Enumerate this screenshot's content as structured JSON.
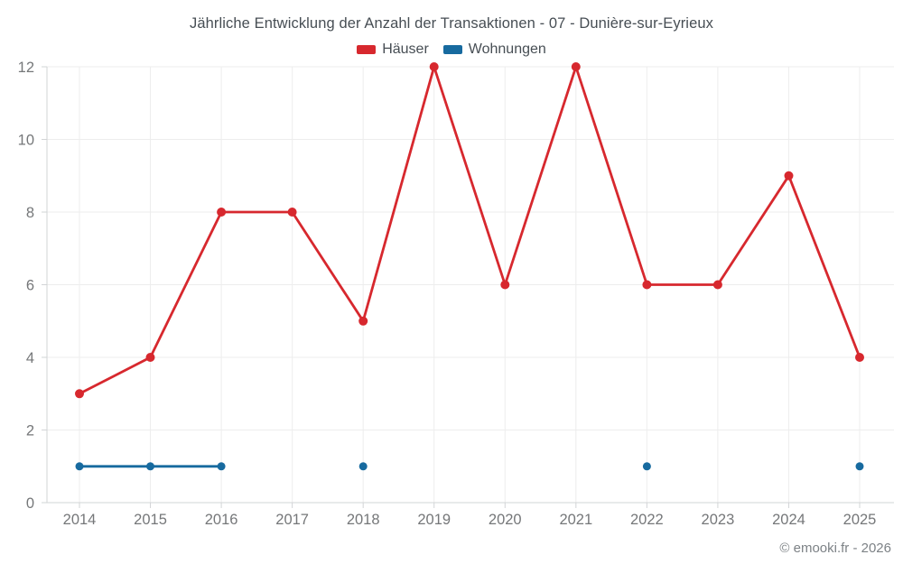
{
  "page": {
    "footer": "© emooki.fr - 2026"
  },
  "colors": {
    "haeuser": "#d7282e",
    "wohnungen": "#176a9f",
    "grid": "#ededed",
    "axis": "#d2d4d6",
    "tick_label": "#757779",
    "title_text": "#474e54"
  },
  "chart_data": {
    "type": "line",
    "title": "Jährliche Entwicklung der Anzahl der Transaktionen - 07 - Dunière-sur-Eyrieux",
    "categories": [
      "2014",
      "2015",
      "2016",
      "2017",
      "2018",
      "2019",
      "2020",
      "2021",
      "2022",
      "2023",
      "2024",
      "2025"
    ],
    "series": [
      {
        "name": "Häuser",
        "color": "#d7282e",
        "values": [
          3,
          4,
          8,
          8,
          5,
          12,
          6,
          12,
          6,
          6,
          9,
          4
        ]
      },
      {
        "name": "Wohnungen",
        "color": "#176a9f",
        "values": [
          1,
          1,
          1,
          null,
          1,
          null,
          null,
          null,
          1,
          null,
          null,
          1
        ]
      }
    ],
    "xlabel": "",
    "ylabel": "",
    "ylim": [
      0,
      12
    ],
    "yticks": [
      0,
      2,
      4,
      6,
      8,
      10,
      12
    ],
    "grid": true,
    "legend_position": "top"
  }
}
